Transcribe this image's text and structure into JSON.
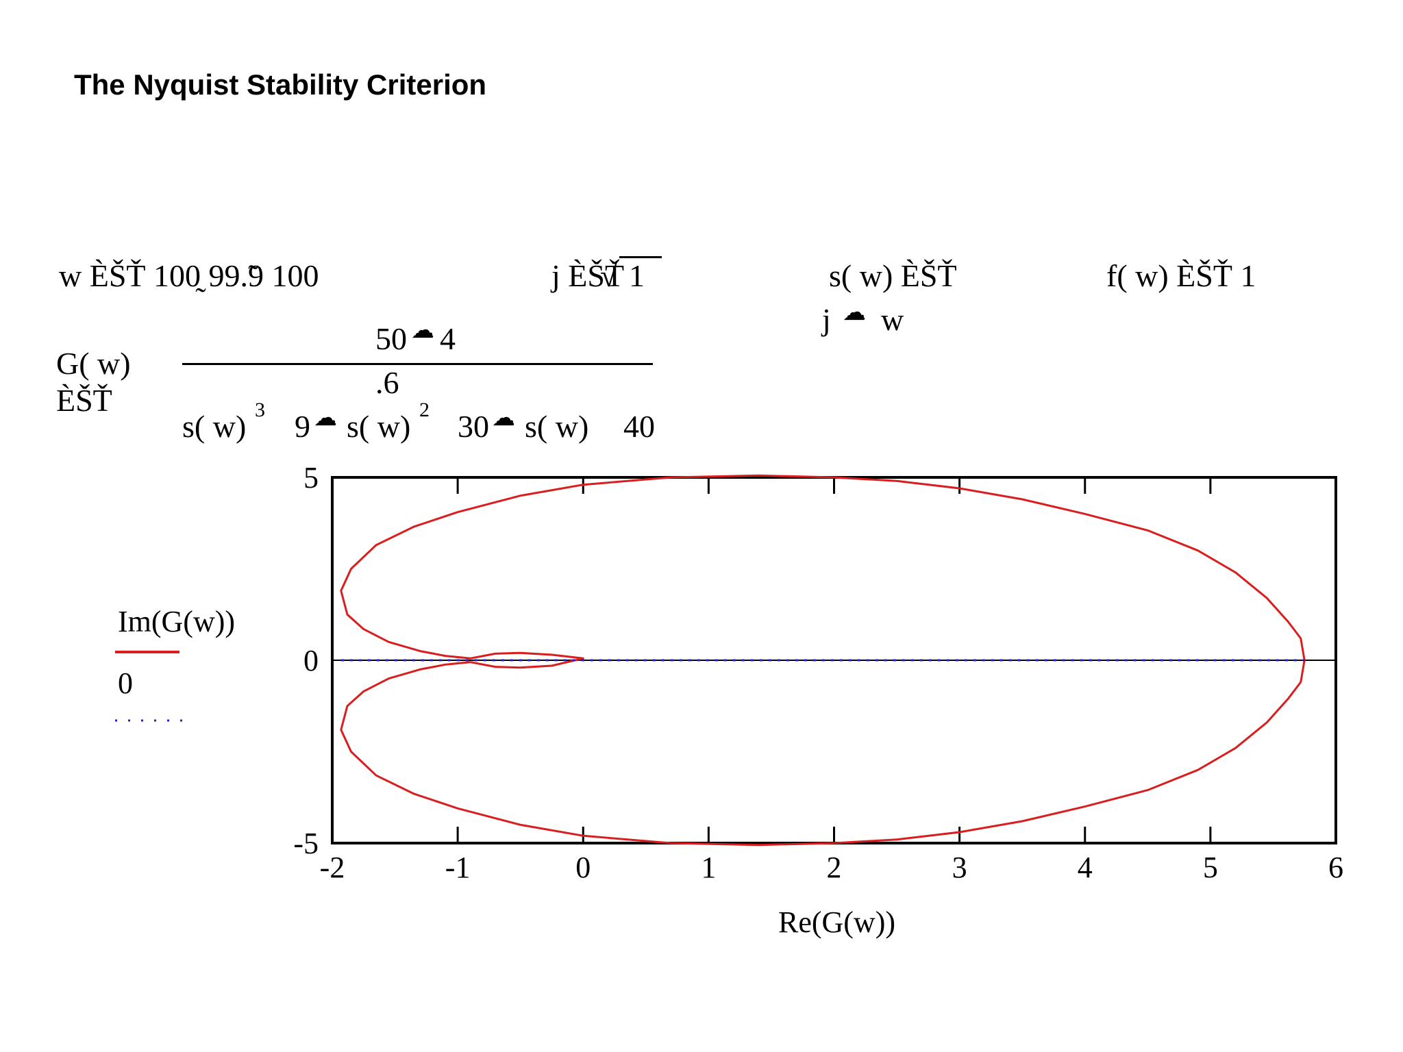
{
  "page": {
    "title": "The Nyquist Stability Criterion"
  },
  "equations": {
    "w_def": "w ÈŠŤ 100̰ 99.̃9 100",
    "j_def_prefix": "j ÈŠŤ",
    "j_def_radical": "√",
    "j_def_radicand": "1",
    "s_def": "s( w) ÈŠŤ",
    "s_def_rhs": "j",
    "s_def_rhs_var": "w",
    "f_def": "f( w) ÈŠŤ 1",
    "g_lhs": "G( w)",
    "g_assign": "ÈŠŤ",
    "g_num": "50",
    "g_num_rest": "4",
    "g_num2": ".6",
    "g_den_1": "s( w)",
    "g_den_exp1": "3",
    "g_den_2": "9",
    "g_den_3": "s( w)",
    "g_den_exp2": "2",
    "g_den_4": "30",
    "g_den_5": "s( w)",
    "g_den_6": "40"
  },
  "chart_data": {
    "type": "line",
    "title": "",
    "xlabel": "Re(G(w))",
    "ylabel": "",
    "xlim": [
      -2,
      6
    ],
    "ylim": [
      -5,
      5
    ],
    "xticks": [
      -2,
      -1,
      0,
      1,
      2,
      3,
      4,
      5,
      6
    ],
    "xtick_labels": [
      "-2",
      "-1",
      "0",
      "1",
      "2",
      "3",
      "4",
      "5",
      "6"
    ],
    "yticks": [
      -5,
      0,
      5
    ],
    "ytick_labels": [
      "-5",
      "0",
      "5"
    ],
    "grid": false,
    "legend": {
      "position": "left",
      "entries": [
        {
          "label": "Im(G(w))",
          "color": "#d81e1e",
          "style": "solid"
        },
        {
          "label": "0",
          "color": "#1e1ee0",
          "style": "dotted"
        }
      ]
    },
    "series": [
      {
        "name": "Im(G(w))",
        "color": "#d81e1e",
        "x": [
          5.75,
          5.72,
          5.62,
          5.45,
          5.2,
          4.9,
          4.5,
          4.0,
          3.5,
          3.0,
          2.5,
          2.0,
          1.4,
          0.7,
          0.0,
          -0.5,
          -1.0,
          -1.35,
          -1.65,
          -1.85,
          -1.93,
          -1.88,
          -1.75,
          -1.55,
          -1.3,
          -1.1,
          -0.9,
          -0.7,
          -0.5,
          -0.25,
          0.0,
          -0.25,
          -0.5,
          -0.7,
          -0.9,
          -1.1,
          -1.3,
          -1.55,
          -1.75,
          -1.88,
          -1.93,
          -1.85,
          -1.65,
          -1.35,
          -1.0,
          -0.5,
          0.0,
          0.7,
          1.4,
          2.0,
          2.5,
          3.0,
          3.5,
          4.0,
          4.5,
          4.9,
          5.2,
          5.45,
          5.62,
          5.72,
          5.75
        ],
        "y": [
          0.0,
          0.6,
          1.05,
          1.7,
          2.4,
          3.0,
          3.55,
          4.0,
          4.4,
          4.7,
          4.9,
          5.0,
          5.05,
          5.0,
          4.8,
          4.5,
          4.05,
          3.65,
          3.15,
          2.5,
          1.9,
          1.25,
          0.85,
          0.5,
          0.25,
          0.12,
          0.05,
          0.18,
          0.2,
          0.15,
          0.05,
          -0.15,
          -0.2,
          -0.18,
          -0.05,
          -0.12,
          -0.25,
          -0.5,
          -0.85,
          -1.25,
          -1.9,
          -2.5,
          -3.15,
          -3.65,
          -4.05,
          -4.5,
          -4.8,
          -5.0,
          -5.05,
          -5.0,
          -4.9,
          -4.7,
          -4.4,
          -4.0,
          -3.55,
          -3.0,
          -2.4,
          -1.7,
          -1.05,
          -0.6,
          0.0
        ]
      },
      {
        "name": "0",
        "color": "#1e1ee0",
        "x": [
          -1.93,
          5.75
        ],
        "y": [
          0,
          0
        ]
      }
    ]
  }
}
